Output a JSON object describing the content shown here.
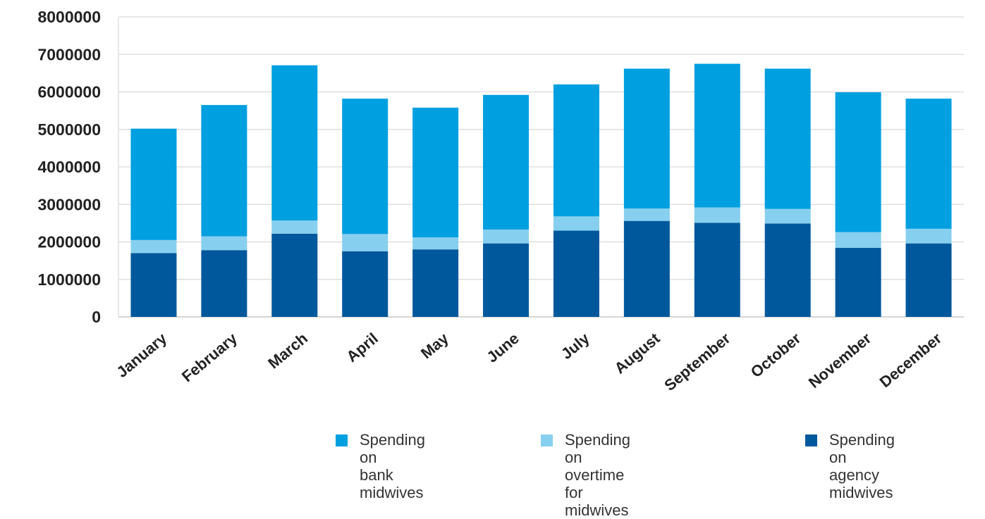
{
  "chart_data": {
    "type": "bar",
    "stacked": true,
    "categories": [
      "January",
      "February",
      "March",
      "April",
      "May",
      "June",
      "July",
      "August",
      "September",
      "October",
      "November",
      "December"
    ],
    "series": [
      {
        "name": "Spending on agency midwives",
        "color": "#00589c",
        "values": [
          1700000,
          1780000,
          2220000,
          1750000,
          1800000,
          1960000,
          2300000,
          2560000,
          2510000,
          2490000,
          1840000,
          1960000
        ]
      },
      {
        "name": "Spending on overtime for midwives",
        "color": "#87cfef",
        "values": [
          350000,
          370000,
          350000,
          460000,
          320000,
          370000,
          380000,
          330000,
          410000,
          390000,
          420000,
          390000
        ]
      },
      {
        "name": "Spending on bank midwives",
        "color": "#009fe0",
        "values": [
          2970000,
          3500000,
          4140000,
          3610000,
          3460000,
          3590000,
          3520000,
          3730000,
          3830000,
          3740000,
          3730000,
          3470000
        ]
      }
    ],
    "ylim": [
      0,
      8000000
    ],
    "yticks": [
      0,
      1000000,
      2000000,
      3000000,
      4000000,
      5000000,
      6000000,
      7000000,
      8000000
    ],
    "ytick_labels": [
      "0",
      "1000000",
      "2000000",
      "3000000",
      "4000000",
      "5000000",
      "6000000",
      "7000000",
      "8000000"
    ],
    "grid": true,
    "legend_position": "bottom",
    "legend": [
      {
        "label": "Spending on\nbank midwives",
        "color": "#009fe0"
      },
      {
        "label": "Spending on\novertime for midwives",
        "color": "#87cfef"
      },
      {
        "label": "Spending on\nagency midwives",
        "color": "#00589c"
      }
    ],
    "title": "",
    "xlabel": "",
    "ylabel": ""
  }
}
